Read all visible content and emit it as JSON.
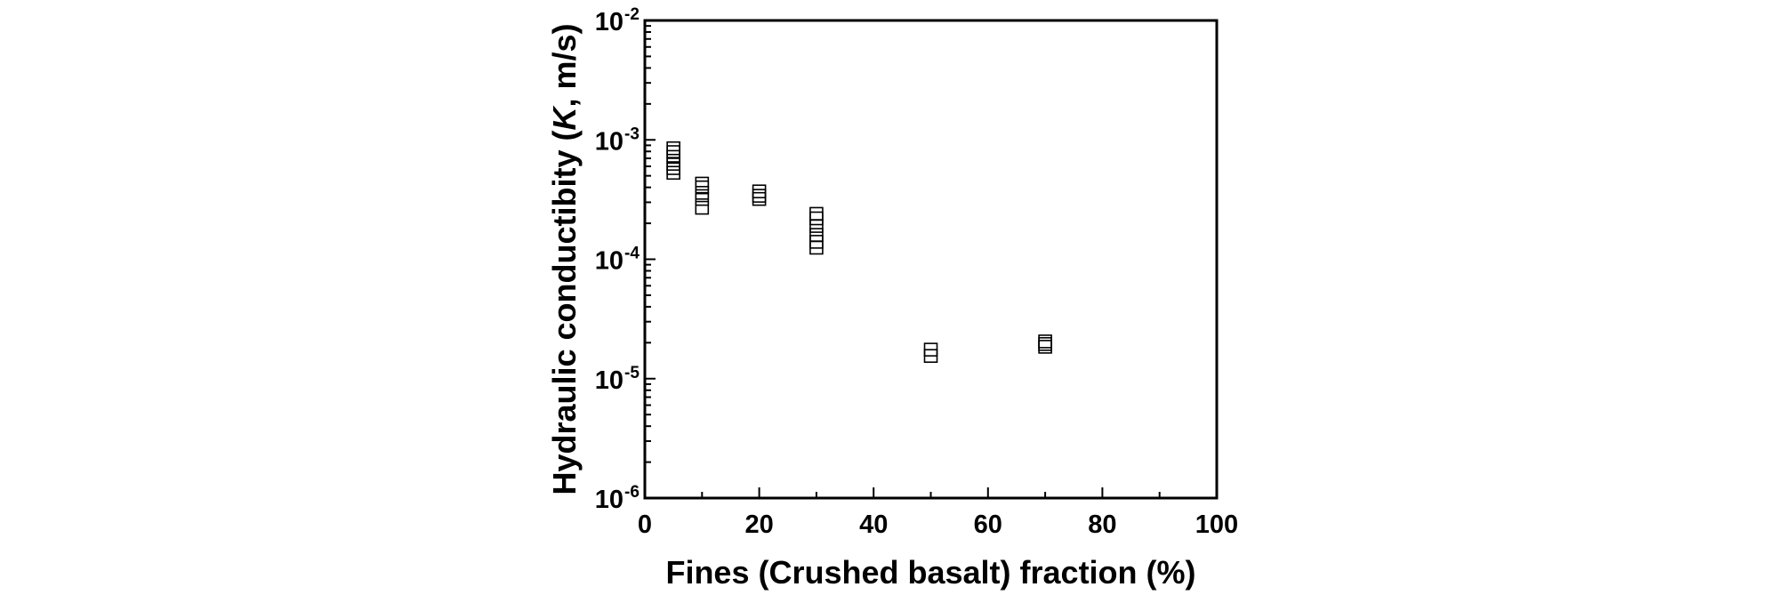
{
  "chart_data": {
    "type": "scatter",
    "xlabel": "Fines (Crushed basalt) fraction (%)",
    "ylabel_parts": {
      "pre": "Hydraulic conductibity (",
      "italic": "K",
      "post": ", m/s)"
    },
    "xlim": [
      0,
      100
    ],
    "ylim": [
      1e-06,
      0.01
    ],
    "yscale": "log",
    "xticks": [
      0,
      20,
      40,
      60,
      80,
      100
    ],
    "xtick_labels": [
      "0",
      "20",
      "40",
      "60",
      "80",
      "100"
    ],
    "yticks": [
      {
        "base": "10",
        "exp": "-6",
        "value": 1e-06
      },
      {
        "base": "10",
        "exp": "-5",
        "value": 1e-05
      },
      {
        "base": "10",
        "exp": "-4",
        "value": 0.0001
      },
      {
        "base": "10",
        "exp": "-3",
        "value": 0.001
      },
      {
        "base": "10",
        "exp": "-2",
        "value": 0.01
      }
    ],
    "marker": "open-square",
    "grid": false,
    "points": [
      {
        "x": 5,
        "y": 0.00085
      },
      {
        "x": 5,
        "y": 0.00079
      },
      {
        "x": 5,
        "y": 0.00072
      },
      {
        "x": 5,
        "y": 0.00063
      },
      {
        "x": 5,
        "y": 0.00058
      },
      {
        "x": 5,
        "y": 0.00053
      },
      {
        "x": 10,
        "y": 0.00043
      },
      {
        "x": 10,
        "y": 0.0004
      },
      {
        "x": 10,
        "y": 0.00036
      },
      {
        "x": 10,
        "y": 0.00032
      },
      {
        "x": 10,
        "y": 0.00027
      },
      {
        "x": 20,
        "y": 0.00037
      },
      {
        "x": 20,
        "y": 0.00034
      },
      {
        "x": 20,
        "y": 0.00032
      },
      {
        "x": 30,
        "y": 0.00024
      },
      {
        "x": 30,
        "y": 0.00022
      },
      {
        "x": 30,
        "y": 0.00019
      },
      {
        "x": 30,
        "y": 0.00016
      },
      {
        "x": 30,
        "y": 0.00014
      },
      {
        "x": 30,
        "y": 0.000125
      },
      {
        "x": 50,
        "y": 1.75e-05
      },
      {
        "x": 50,
        "y": 1.55e-05
      },
      {
        "x": 70,
        "y": 2.05e-05
      },
      {
        "x": 70,
        "y": 1.95e-05
      },
      {
        "x": 70,
        "y": 1.85e-05
      }
    ]
  }
}
